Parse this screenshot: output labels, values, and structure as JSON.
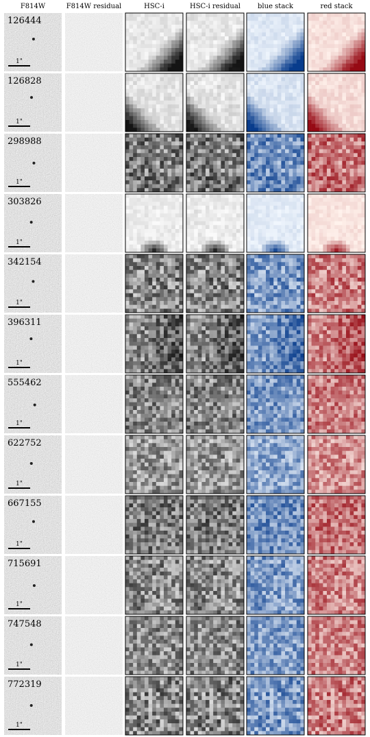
{
  "headers": [
    "F814W",
    "F814W residual",
    "HSC-i",
    "HSC-i residual",
    "blue stack",
    "red stack"
  ],
  "rows": [
    {
      "id": "126444",
      "scale": "1\""
    },
    {
      "id": "126828",
      "scale": "1\""
    },
    {
      "id": "298988",
      "scale": "1\""
    },
    {
      "id": "303826",
      "scale": "1\""
    },
    {
      "id": "342154",
      "scale": "1\""
    },
    {
      "id": "396311",
      "scale": "1\""
    },
    {
      "id": "555462",
      "scale": "1\""
    },
    {
      "id": "622752",
      "scale": "1\""
    },
    {
      "id": "667155",
      "scale": "1\""
    },
    {
      "id": "715691",
      "scale": "1\""
    },
    {
      "id": "747548",
      "scale": "1\""
    },
    {
      "id": "772319",
      "scale": "1\""
    }
  ]
}
